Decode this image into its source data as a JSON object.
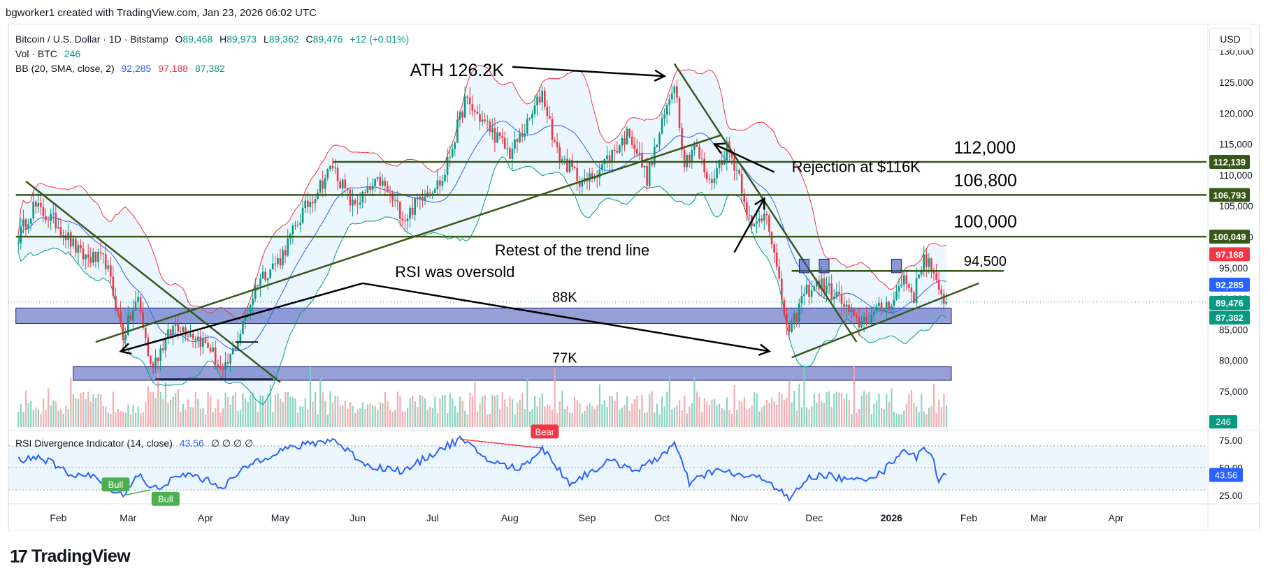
{
  "header": {
    "credit": "bgworker1 created with TradingView.com, Jan 23, 2026 06:02 UTC"
  },
  "legend": {
    "symbol": "Bitcoin / U.S. Dollar · 1D · Bitstamp",
    "o_label": "O",
    "o": "89,468",
    "h_label": "H",
    "h": "89,973",
    "l_label": "L",
    "l": "89,362",
    "c_label": "C",
    "c": "89,476",
    "change": "+12 (+0.01%)",
    "volume_label": "Vol · BTC",
    "volume": "246",
    "bb_label": "BB (20, SMA, close, 2)",
    "bb_mid": "92,285",
    "bb_upper": "97,188",
    "bb_lower": "87,382"
  },
  "currency": "USD",
  "rsi_legend": {
    "label": "RSI Divergence Indicator (14, close)",
    "value": "43.56",
    "extra": "∅ ∅ ∅ ∅"
  },
  "footer": {
    "brand": "TradingView",
    "mark": "17"
  },
  "colors": {
    "up": "#089981",
    "down": "#f23645",
    "bb_mid": "#2962ff",
    "bb_band": "#f23645",
    "bb_fill": "#e3f2fd",
    "trend": "#38571a",
    "zone": "#3f51b5",
    "rsi": "#2962ff"
  },
  "chart_data": {
    "type": "candlestick",
    "title": "Bitcoin / U.S. Dollar · 1D · Bitstamp",
    "x_tick_labels": [
      "Feb",
      "Mar",
      "Apr",
      "May",
      "Jun",
      "Jul",
      "Aug",
      "Sep",
      "Oct",
      "Nov",
      "Dec",
      "2026",
      "Feb",
      "Mar",
      "Apr"
    ],
    "y_tick_labels": [
      "130,000",
      "125,000",
      "120,000",
      "115,000",
      "110,000",
      "105,000",
      "100,000",
      "95,000",
      "90,000",
      "85,000",
      "80,000",
      "75,000"
    ],
    "ylim": [
      70000,
      132000
    ],
    "price_path": [
      [
        "2025-01-16",
        100000
      ],
      [
        "2025-01-22",
        105000
      ],
      [
        "2025-02-01",
        102000
      ],
      [
        "2025-02-10",
        97000
      ],
      [
        "2025-02-20",
        96000
      ],
      [
        "2025-02-27",
        84000
      ],
      [
        "2025-03-05",
        90000
      ],
      [
        "2025-03-10",
        79000
      ],
      [
        "2025-03-20",
        86000
      ],
      [
        "2025-03-28",
        84000
      ],
      [
        "2025-04-03",
        82000
      ],
      [
        "2025-04-08",
        77500
      ],
      [
        "2025-04-15",
        84500
      ],
      [
        "2025-04-22",
        93000
      ],
      [
        "2025-05-01",
        96500
      ],
      [
        "2025-05-10",
        104000
      ],
      [
        "2025-05-22",
        111500
      ],
      [
        "2025-05-30",
        105000
      ],
      [
        "2025-06-10",
        109000
      ],
      [
        "2025-06-20",
        103000
      ],
      [
        "2025-06-28",
        107500
      ],
      [
        "2025-07-05",
        109000
      ],
      [
        "2025-07-14",
        122000
      ],
      [
        "2025-07-25",
        117000
      ],
      [
        "2025-08-01",
        113500
      ],
      [
        "2025-08-08",
        118000
      ],
      [
        "2025-08-14",
        123500
      ],
      [
        "2025-08-20",
        113500
      ],
      [
        "2025-08-31",
        108500
      ],
      [
        "2025-09-10",
        113000
      ],
      [
        "2025-09-18",
        117000
      ],
      [
        "2025-09-25",
        109500
      ],
      [
        "2025-10-01",
        118000
      ],
      [
        "2025-10-06",
        125500
      ],
      [
        "2025-10-10",
        112000
      ],
      [
        "2025-10-14",
        115000
      ],
      [
        "2025-10-20",
        108500
      ],
      [
        "2025-10-27",
        114500
      ],
      [
        "2025-11-01",
        110000
      ],
      [
        "2025-11-06",
        101000
      ],
      [
        "2025-11-12",
        104500
      ],
      [
        "2025-11-17",
        92000
      ],
      [
        "2025-11-21",
        84000
      ],
      [
        "2025-11-27",
        91000
      ],
      [
        "2025-12-03",
        92500
      ],
      [
        "2025-12-10",
        90500
      ],
      [
        "2025-12-18",
        86000
      ],
      [
        "2025-12-25",
        87500
      ],
      [
        "2026-01-02",
        90000
      ],
      [
        "2026-01-06",
        93500
      ],
      [
        "2026-01-10",
        90500
      ],
      [
        "2026-01-14",
        97000
      ],
      [
        "2026-01-17",
        95000
      ],
      [
        "2026-01-20",
        90500
      ],
      [
        "2026-01-23",
        89476
      ]
    ],
    "bollinger": {
      "period": 20,
      "stddev": 2,
      "last_mid": 92285,
      "last_upper": 97188,
      "last_lower": 87382
    },
    "volume": {
      "last": 246
    },
    "price_labels": [
      {
        "value": 112139,
        "text": "112,139",
        "color": "#38571a"
      },
      {
        "value": 106793,
        "text": "106,793",
        "color": "#38571a"
      },
      {
        "value": 100049,
        "text": "100,049",
        "color": "#38571a"
      },
      {
        "value": 97188,
        "text": "97,188",
        "color": "#f23645"
      },
      {
        "value": 92285,
        "text": "92,285",
        "color": "#2962ff"
      },
      {
        "value": 89476,
        "text": "89,476",
        "color": "#089981"
      },
      {
        "value": 87382,
        "text": "87,382",
        "color": "#089981"
      }
    ],
    "volume_label": {
      "text": "246",
      "color": "#089981"
    },
    "horizontal_levels": [
      {
        "value": 112139,
        "start": "2025-05-22",
        "label": "112,000"
      },
      {
        "value": 106793,
        "start": "2025-01-15",
        "label": "106,800"
      },
      {
        "value": 100049,
        "start": "2025-01-15",
        "label": "100,000"
      },
      {
        "value": 94500,
        "start": "2025-11-22",
        "end": "2026-02-15",
        "label": "94,500"
      }
    ],
    "zones": [
      {
        "low": 86000,
        "high": 88500,
        "start": "2025-01-15",
        "end": "2026-01-25",
        "label": "88K"
      },
      {
        "low": 76800,
        "high": 79000,
        "start": "2025-02-07",
        "end": "2026-01-25",
        "label": "77K"
      }
    ],
    "trend_lines": [
      {
        "from": [
          "2025-01-19",
          109000
        ],
        "to": [
          "2025-05-01",
          76500
        ]
      },
      {
        "from": [
          "2025-02-16",
          83000
        ],
        "to": [
          "2025-10-25",
          116500
        ]
      },
      {
        "from": [
          "2025-10-06",
          128000
        ],
        "to": [
          "2025-12-18",
          83000
        ]
      },
      {
        "from": [
          "2025-11-22",
          80500
        ],
        "to": [
          "2026-02-05",
          92500
        ]
      },
      {
        "from": [
          "2025-03-12",
          77000
        ],
        "to": [
          "2025-04-28",
          77000
        ]
      },
      {
        "from": [
          "2025-04-13",
          83000
        ],
        "to": [
          "2025-04-22",
          83000
        ]
      }
    ],
    "annotations": [
      {
        "text": "ATH 126.2K",
        "at": [
          "2025-06-22",
          126000
        ],
        "size": 25
      },
      {
        "text": "Rejection at $116K",
        "at": [
          "2025-11-22",
          110500
        ],
        "size": 22
      },
      {
        "text": "Retest of the trend line",
        "at": [
          "2025-07-26",
          97000
        ],
        "size": 22
      },
      {
        "text": "RSI was oversold",
        "at": [
          "2025-06-16",
          93500
        ],
        "size": 22
      },
      {
        "text": "88K",
        "at": [
          "2025-08-18",
          89500
        ],
        "size": 20
      },
      {
        "text": "77K",
        "at": [
          "2025-08-18",
          79700
        ],
        "size": 20
      },
      {
        "text": "112,000",
        "at": [
          "2026-01-26",
          113500
        ],
        "size": 25
      },
      {
        "text": "106,800",
        "at": [
          "2026-01-26",
          108200
        ],
        "size": 25
      },
      {
        "text": "100,000",
        "at": [
          "2026-01-26",
          101500
        ],
        "size": 25
      },
      {
        "text": "94,500",
        "at": [
          "2026-01-30",
          95300
        ],
        "size": 20
      }
    ],
    "arrows": [
      {
        "from": [
          "2025-08-02",
          127500
        ],
        "to": [
          "2025-10-02",
          126000
        ]
      },
      {
        "from": [
          "2025-11-15",
          110500
        ],
        "to": [
          "2025-10-22",
          115000
        ]
      },
      {
        "from": [
          "2025-10-30",
          97500
        ],
        "to": [
          "2025-11-11",
          106200
        ]
      },
      {
        "from": [
          "2025-06-03",
          92500
        ],
        "to": [
          "2025-02-26",
          81500
        ]
      },
      {
        "from": [
          "2025-06-03",
          92500
        ],
        "to": [
          "2025-11-13",
          81500
        ]
      }
    ],
    "rsi": {
      "label": "RSI Divergence Indicator (14, close)",
      "value": 43.56,
      "levels": [
        70,
        50,
        30
      ],
      "y_tick_labels": [
        "75.00",
        "50.00",
        "25.00"
      ],
      "ylim": [
        20,
        80
      ],
      "path": [
        [
          "2025-01-15",
          57
        ],
        [
          "2025-01-25",
          60
        ],
        [
          "2025-02-05",
          45
        ],
        [
          "2025-02-15",
          42
        ],
        [
          "2025-02-27",
          25
        ],
        [
          "2025-03-05",
          45
        ],
        [
          "2025-03-10",
          30
        ],
        [
          "2025-03-25",
          45
        ],
        [
          "2025-04-08",
          33
        ],
        [
          "2025-04-20",
          55
        ],
        [
          "2025-05-01",
          66
        ],
        [
          "2025-05-22",
          76
        ],
        [
          "2025-06-05",
          52
        ],
        [
          "2025-06-20",
          47
        ],
        [
          "2025-07-01",
          63
        ],
        [
          "2025-07-12",
          76
        ],
        [
          "2025-07-25",
          55
        ],
        [
          "2025-08-05",
          49
        ],
        [
          "2025-08-14",
          68
        ],
        [
          "2025-08-25",
          36
        ],
        [
          "2025-09-10",
          56
        ],
        [
          "2025-09-22",
          48
        ],
        [
          "2025-10-01",
          62
        ],
        [
          "2025-10-06",
          72
        ],
        [
          "2025-10-12",
          36
        ],
        [
          "2025-10-22",
          48
        ],
        [
          "2025-11-04",
          42
        ],
        [
          "2025-11-12",
          40
        ],
        [
          "2025-11-21",
          21
        ],
        [
          "2025-11-28",
          40
        ],
        [
          "2025-12-05",
          44
        ],
        [
          "2025-12-16",
          38
        ],
        [
          "2025-12-28",
          45
        ],
        [
          "2026-01-06",
          68
        ],
        [
          "2026-01-11",
          58
        ],
        [
          "2026-01-14",
          71
        ],
        [
          "2026-01-17",
          61
        ],
        [
          "2026-01-20",
          40
        ],
        [
          "2026-01-23",
          43.56
        ]
      ],
      "signals": [
        {
          "text": "Bull",
          "at": [
            "2025-02-24",
            35
          ],
          "color": "#4caf50"
        },
        {
          "text": "Bull",
          "at": [
            "2025-03-16",
            22
          ],
          "color": "#4caf50"
        },
        {
          "text": "Bear",
          "at": [
            "2025-08-15",
            83
          ],
          "color": "#f23645"
        }
      ],
      "divergence_lines": [
        {
          "from": [
            "2025-07-12",
            76
          ],
          "to": [
            "2025-08-14",
            68
          ],
          "color": "#f23645"
        },
        {
          "from": [
            "2025-02-27",
            25
          ],
          "to": [
            "2025-03-10",
            30
          ],
          "color": "#4caf50"
        }
      ]
    }
  }
}
